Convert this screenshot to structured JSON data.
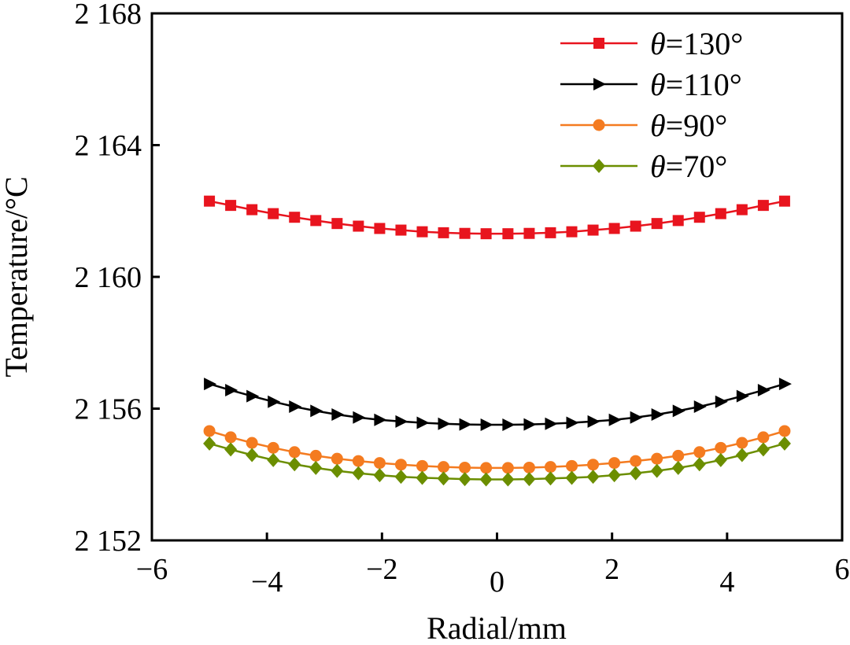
{
  "chart_data": {
    "type": "line",
    "xlabel": "Radial/mm",
    "ylabel": "Temperature/°C",
    "xlim": [
      -6,
      6
    ],
    "ylim": [
      2152,
      2168
    ],
    "xticks": [
      -6,
      -4,
      -2,
      0,
      2,
      4,
      6
    ],
    "xtick_labels": [
      "−6",
      "−4",
      "−2",
      "0",
      "2",
      "4",
      "6"
    ],
    "yticks": [
      2152,
      2156,
      2160,
      2164,
      2168
    ],
    "ytick_labels": [
      "2 152",
      "2 156",
      "2 160",
      "2 164",
      "2 168"
    ],
    "legend_position": "top-right",
    "series": [
      {
        "name": "θ=130°",
        "legend_symbol": "θ",
        "legend_suffix": "=130°",
        "color": "#e8141e",
        "marker": "square",
        "x": [
          -5.0,
          -4.63,
          -4.26,
          -3.89,
          -3.52,
          -3.15,
          -2.78,
          -2.41,
          -2.04,
          -1.67,
          -1.3,
          -0.93,
          -0.56,
          -0.19,
          0.19,
          0.56,
          0.93,
          1.3,
          1.67,
          2.04,
          2.41,
          2.78,
          3.15,
          3.52,
          3.89,
          4.26,
          4.63,
          5.0
        ],
        "y": [
          2162.3,
          2162.17,
          2162.04,
          2161.92,
          2161.81,
          2161.71,
          2161.62,
          2161.54,
          2161.47,
          2161.42,
          2161.37,
          2161.34,
          2161.32,
          2161.31,
          2161.31,
          2161.32,
          2161.34,
          2161.37,
          2161.42,
          2161.47,
          2161.54,
          2161.62,
          2161.71,
          2161.81,
          2161.92,
          2162.04,
          2162.17,
          2162.3
        ]
      },
      {
        "name": "θ=110°",
        "legend_symbol": "θ",
        "legend_suffix": "=110°",
        "color": "#000000",
        "marker": "triangle-right",
        "x": [
          -5.0,
          -4.63,
          -4.26,
          -3.89,
          -3.52,
          -3.15,
          -2.78,
          -2.41,
          -2.04,
          -1.67,
          -1.3,
          -0.93,
          -0.56,
          -0.19,
          0.19,
          0.56,
          0.93,
          1.3,
          1.67,
          2.04,
          2.41,
          2.78,
          3.15,
          3.52,
          3.89,
          4.26,
          4.63,
          5.0
        ],
        "y": [
          2156.75,
          2156.56,
          2156.38,
          2156.21,
          2156.06,
          2155.93,
          2155.82,
          2155.73,
          2155.66,
          2155.61,
          2155.57,
          2155.54,
          2155.52,
          2155.51,
          2155.51,
          2155.52,
          2155.54,
          2155.57,
          2155.61,
          2155.66,
          2155.73,
          2155.82,
          2155.93,
          2156.06,
          2156.21,
          2156.38,
          2156.56,
          2156.75
        ]
      },
      {
        "name": "θ=90°",
        "legend_symbol": "θ",
        "legend_suffix": "=90°",
        "color": "#f47b20",
        "marker": "circle",
        "x": [
          -5.0,
          -4.63,
          -4.26,
          -3.89,
          -3.52,
          -3.15,
          -2.78,
          -2.41,
          -2.04,
          -1.67,
          -1.3,
          -0.93,
          -0.56,
          -0.19,
          0.19,
          0.56,
          0.93,
          1.3,
          1.67,
          2.04,
          2.41,
          2.78,
          3.15,
          3.52,
          3.89,
          4.26,
          4.63,
          5.0
        ],
        "y": [
          2155.32,
          2155.13,
          2154.96,
          2154.81,
          2154.68,
          2154.57,
          2154.48,
          2154.41,
          2154.35,
          2154.3,
          2154.26,
          2154.23,
          2154.21,
          2154.2,
          2154.2,
          2154.21,
          2154.23,
          2154.26,
          2154.3,
          2154.35,
          2154.41,
          2154.48,
          2154.57,
          2154.68,
          2154.81,
          2154.96,
          2155.13,
          2155.32
        ]
      },
      {
        "name": "θ=70°",
        "legend_symbol": "θ",
        "legend_suffix": "=70°",
        "color": "#6b8e00",
        "marker": "diamond",
        "x": [
          -5.0,
          -4.63,
          -4.26,
          -3.89,
          -3.52,
          -3.15,
          -2.78,
          -2.41,
          -2.04,
          -1.67,
          -1.3,
          -0.93,
          -0.56,
          -0.19,
          0.19,
          0.56,
          0.93,
          1.3,
          1.67,
          2.04,
          2.41,
          2.78,
          3.15,
          3.52,
          3.89,
          4.26,
          4.63,
          5.0
        ],
        "y": [
          2154.94,
          2154.76,
          2154.59,
          2154.44,
          2154.31,
          2154.2,
          2154.11,
          2154.04,
          2153.98,
          2153.93,
          2153.9,
          2153.88,
          2153.86,
          2153.85,
          2153.85,
          2153.86,
          2153.88,
          2153.9,
          2153.93,
          2153.98,
          2154.04,
          2154.11,
          2154.2,
          2154.31,
          2154.44,
          2154.59,
          2154.76,
          2154.94
        ]
      }
    ]
  }
}
